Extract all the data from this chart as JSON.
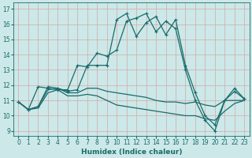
{
  "xlabel": "Humidex (Indice chaleur)",
  "xlim": [
    -0.5,
    23.5
  ],
  "ylim": [
    8.7,
    17.4
  ],
  "yticks": [
    9,
    10,
    11,
    12,
    13,
    14,
    15,
    16,
    17
  ],
  "xticks": [
    0,
    1,
    2,
    3,
    4,
    5,
    6,
    7,
    8,
    9,
    10,
    11,
    12,
    13,
    14,
    15,
    16,
    17,
    18,
    19,
    20,
    21,
    22,
    23
  ],
  "bg_color": "#cce8e8",
  "line_color": "#1a6b6b",
  "grid_color": "#aad4d4",
  "line1_x": [
    0,
    1,
    2,
    3,
    4,
    5,
    6,
    7,
    8,
    9,
    10,
    11,
    12,
    13,
    14,
    15,
    16,
    17,
    18,
    19,
    20,
    21,
    22,
    23
  ],
  "line1_y": [
    10.9,
    10.4,
    10.6,
    11.9,
    11.8,
    11.6,
    11.7,
    13.3,
    13.3,
    13.3,
    16.3,
    16.7,
    15.2,
    16.1,
    16.5,
    15.3,
    16.3,
    13.3,
    11.5,
    10.0,
    9.4,
    11.0,
    11.8,
    11.1
  ],
  "line2_x": [
    0,
    1,
    2,
    3,
    4,
    5,
    6,
    7,
    8,
    9,
    10,
    11,
    12,
    13,
    14,
    15,
    16,
    17,
    18,
    19,
    20,
    21,
    22,
    23
  ],
  "line2_y": [
    10.9,
    10.4,
    11.9,
    11.8,
    11.7,
    11.7,
    13.3,
    13.2,
    14.1,
    13.9,
    14.3,
    16.2,
    16.4,
    16.7,
    15.5,
    16.2,
    15.7,
    13.0,
    11.0,
    9.7,
    9.0,
    11.0,
    11.6,
    11.1
  ],
  "line3_x": [
    0,
    1,
    2,
    3,
    4,
    5,
    6,
    7,
    8,
    9,
    10,
    11,
    12,
    13,
    14,
    15,
    16,
    17,
    18,
    19,
    20,
    21,
    22,
    23
  ],
  "line3_y": [
    10.9,
    10.4,
    10.6,
    11.7,
    11.8,
    11.5,
    11.5,
    11.8,
    11.8,
    11.6,
    11.5,
    11.4,
    11.3,
    11.2,
    11.0,
    10.9,
    10.9,
    10.8,
    10.9,
    10.7,
    10.6,
    11.0,
    11.0,
    11.0
  ],
  "line4_x": [
    0,
    1,
    2,
    3,
    4,
    5,
    6,
    7,
    8,
    9,
    10,
    11,
    12,
    13,
    14,
    15,
    16,
    17,
    18,
    19,
    20,
    21,
    22,
    23
  ],
  "line4_y": [
    10.9,
    10.4,
    10.5,
    11.5,
    11.7,
    11.3,
    11.3,
    11.4,
    11.3,
    11.0,
    10.7,
    10.6,
    10.5,
    10.4,
    10.3,
    10.2,
    10.1,
    10.0,
    10.0,
    9.8,
    9.7,
    10.3,
    10.8,
    11.0
  ],
  "marker_size": 3.0,
  "linewidth": 0.9,
  "font_size": 6.5,
  "tick_font_size": 5.5
}
